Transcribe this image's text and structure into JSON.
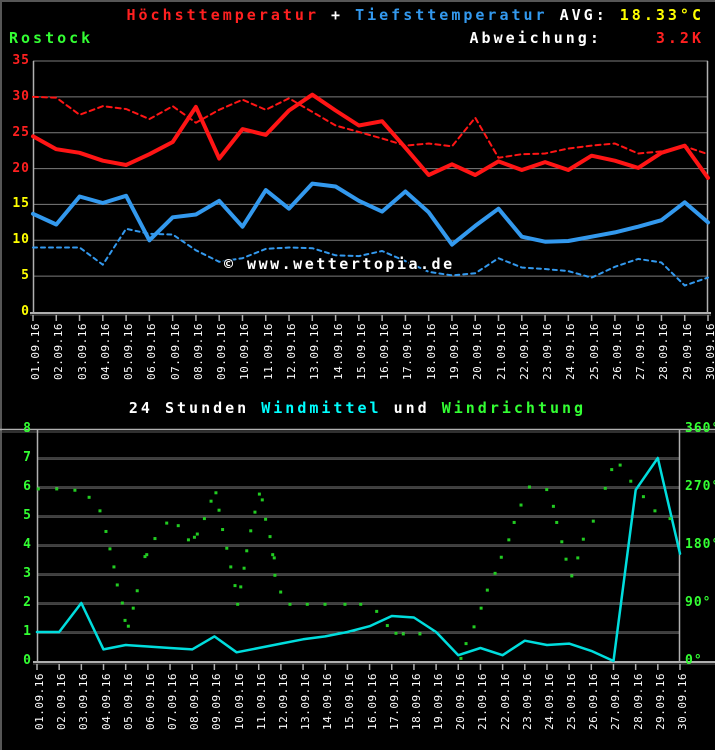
{
  "header": {
    "title_max": "Höchsttemperatur",
    "plus": " + ",
    "title_min": "Tiefsttemperatur",
    "avg_label": " AVG: ",
    "avg_value": "18.33°C",
    "station": "Rostock",
    "deviation_label": "Abweichung:",
    "deviation_value": "3.2K"
  },
  "watermark": {
    "text": "© www.wettertopia.de"
  },
  "wind_title": {
    "part1": "24 Stunden ",
    "part2": "Windmittel",
    "part3": " und ",
    "part4": "Windrichtung"
  },
  "colors": {
    "background": "#000000",
    "red": "#ff1515",
    "blue": "#3399ee",
    "yellow": "#ffff00",
    "green": "#33ff33",
    "cyan_line": "#00dddd",
    "white": "#ffffff",
    "grid": "#7d7d7d",
    "grid_shadow": "#454545",
    "axis": "#b0b0b0",
    "axis_shadow": "#5f5f5f",
    "dot_green": "#22cc22",
    "border": "#565656",
    "tick_red": "#ff2020",
    "tick_yellow": "#ffff00"
  },
  "chart_data": [
    {
      "type": "line",
      "title": "Höchsttemperatur + Tiefsttemperatur",
      "station": "Rostock",
      "avg": "18.33°C",
      "abweichung": "3.2K",
      "ylim": [
        0,
        35
      ],
      "yticks": [
        0,
        5,
        10,
        15,
        20,
        25,
        30,
        35
      ],
      "grid": true,
      "categories": [
        "01.09.16",
        "02.09.16",
        "03.09.16",
        "04.09.16",
        "05.09.16",
        "06.09.16",
        "07.09.16",
        "08.09.16",
        "09.09.16",
        "10.09.16",
        "11.09.16",
        "12.09.16",
        "13.09.16",
        "14.09.16",
        "15.09.16",
        "16.09.16",
        "17.09.16",
        "18.09.16",
        "19.09.16",
        "20.09.16",
        "21.09.16",
        "22.09.16",
        "23.09.16",
        "24.09.16",
        "25.09.16",
        "26.09.16",
        "27.09.16",
        "28.09.16",
        "29.09.16",
        "30.09.16"
      ],
      "series": [
        {
          "name": "hoechsttemperatur-vergleich",
          "style": "dashed",
          "color_key": "red",
          "values": [
            30.0,
            29.9,
            27.5,
            28.7,
            28.3,
            26.9,
            28.7,
            26.4,
            28.2,
            29.6,
            28.2,
            29.8,
            27.9,
            26.0,
            25.1,
            24.2,
            23.2,
            23.5,
            23.1,
            27.1,
            21.5,
            22.0,
            22.1,
            22.8,
            23.2,
            23.5,
            22.1,
            22.4,
            23.1,
            22.0
          ]
        },
        {
          "name": "tiefsttemperatur-vergleich",
          "style": "dashed",
          "color_key": "blue",
          "values": [
            9.0,
            9.0,
            9.0,
            6.6,
            11.6,
            10.9,
            10.8,
            8.6,
            7.0,
            7.5,
            8.8,
            9.0,
            8.9,
            7.9,
            7.8,
            8.5,
            7.1,
            5.6,
            5.1,
            5.4,
            7.5,
            6.2,
            6.0,
            5.7,
            4.8,
            6.3,
            7.4,
            6.9,
            3.7,
            4.8
          ]
        },
        {
          "name": "hoechsttemperatur",
          "style": "solid",
          "color_key": "red",
          "values": [
            24.5,
            22.7,
            22.2,
            21.1,
            20.5,
            22.0,
            23.7,
            28.6,
            21.4,
            25.5,
            24.7,
            28.1,
            30.3,
            28.1,
            26.0,
            26.6,
            22.9,
            19.1,
            20.6,
            19.1,
            21.0,
            19.8,
            20.9,
            19.8,
            21.8,
            21.1,
            20.1,
            22.2,
            23.2,
            18.7
          ]
        },
        {
          "name": "tiefsttemperatur",
          "style": "solid",
          "color_key": "blue",
          "values": [
            13.7,
            12.2,
            16.1,
            15.2,
            16.2,
            10.0,
            13.2,
            13.6,
            15.5,
            11.9,
            17.0,
            14.4,
            17.9,
            17.5,
            15.5,
            14.0,
            16.8,
            13.9,
            9.4,
            12.0,
            14.4,
            10.5,
            9.8,
            9.9,
            10.5,
            11.1,
            11.9,
            12.8,
            15.3,
            12.5
          ]
        }
      ]
    },
    {
      "type": "line+scatter",
      "title": "24 Stunden Windmittel und Windrichtung",
      "ylim_left": [
        0,
        8
      ],
      "yticks_left": [
        0,
        1,
        2,
        3,
        4,
        5,
        6,
        7,
        8
      ],
      "ylim_right": [
        0,
        360
      ],
      "yticks_right": [
        "0°",
        "90°",
        "180°",
        "270°",
        "360°"
      ],
      "grid": true,
      "categories": [
        "01.09.16",
        "02.09.16",
        "03.09.16",
        "04.09.16",
        "05.09.16",
        "06.09.16",
        "07.09.16",
        "08.09.16",
        "09.09.16",
        "10.09.16",
        "11.09.16",
        "12.09.16",
        "13.09.16",
        "14.09.16",
        "15.09.16",
        "16.09.16",
        "17.09.16",
        "18.09.16",
        "19.09.16",
        "20.09.16",
        "21.09.16",
        "22.09.16",
        "23.09.16",
        "24.09.16",
        "25.09.16",
        "26.09.16",
        "27.09.16",
        "28.09.16",
        "29.09.16",
        "30.09.16"
      ],
      "series": [
        {
          "name": "windmittel",
          "kind": "line",
          "color_key": "cyan_line",
          "values": [
            1.0,
            1.0,
            2.0,
            0.4,
            0.55,
            0.5,
            0.45,
            0.4,
            0.85,
            0.3,
            0.45,
            0.6,
            0.75,
            0.85,
            1.0,
            1.2,
            1.55,
            1.5,
            1.0,
            0.2,
            0.45,
            0.2,
            0.7,
            0.55,
            0.6,
            0.35,
            0.0,
            5.9,
            7.0,
            3.7
          ]
        },
        {
          "name": "windrichtung",
          "kind": "scatter",
          "color_key": "dot_green",
          "unit": "deg",
          "points": [
            [
              1.06,
              267
            ],
            [
              1.89,
              267
            ],
            [
              2.71,
              265
            ],
            [
              3.35,
              254
            ],
            [
              3.84,
              233
            ],
            [
              4.11,
              201
            ],
            [
              4.29,
              174
            ],
            [
              4.47,
              146
            ],
            [
              4.62,
              118
            ],
            [
              4.85,
              90
            ],
            [
              4.97,
              63
            ],
            [
              5.12,
              54
            ],
            [
              5.34,
              82
            ],
            [
              5.52,
              109
            ],
            [
              5.87,
              162
            ],
            [
              5.95,
              165
            ],
            [
              6.32,
              190
            ],
            [
              6.85,
              214
            ],
            [
              7.37,
              210
            ],
            [
              7.83,
              188
            ],
            [
              8.1,
              192
            ],
            [
              8.23,
              197
            ],
            [
              8.55,
              221
            ],
            [
              8.85,
              248
            ],
            [
              9.07,
              261
            ],
            [
              9.21,
              234
            ],
            [
              9.37,
              204
            ],
            [
              9.56,
              175
            ],
            [
              9.74,
              146
            ],
            [
              9.93,
              117
            ],
            [
              10.05,
              88
            ],
            [
              10.19,
              115
            ],
            [
              10.34,
              144
            ],
            [
              10.46,
              171
            ],
            [
              10.64,
              202
            ],
            [
              10.83,
              231
            ],
            [
              11.03,
              259
            ],
            [
              11.16,
              250
            ],
            [
              11.31,
              220
            ],
            [
              11.51,
              193
            ],
            [
              11.63,
              165
            ],
            [
              11.7,
              160
            ],
            [
              11.73,
              133
            ],
            [
              11.99,
              107
            ],
            [
              12.41,
              88
            ],
            [
              13.19,
              88
            ],
            [
              13.99,
              88
            ],
            [
              14.89,
              88
            ],
            [
              15.6,
              88
            ],
            [
              16.32,
              77
            ],
            [
              16.8,
              55
            ],
            [
              17.19,
              43
            ],
            [
              17.52,
              42
            ],
            [
              18.27,
              42
            ],
            [
              20.12,
              4
            ],
            [
              20.35,
              27
            ],
            [
              20.71,
              53
            ],
            [
              21.03,
              82
            ],
            [
              21.31,
              110
            ],
            [
              21.66,
              136
            ],
            [
              21.94,
              161
            ],
            [
              22.28,
              188
            ],
            [
              22.52,
              215
            ],
            [
              22.83,
              242
            ],
            [
              23.21,
              270
            ],
            [
              23.99,
              266
            ],
            [
              24.29,
              240
            ],
            [
              24.44,
              215
            ],
            [
              24.67,
              185
            ],
            [
              24.86,
              158
            ],
            [
              25.12,
              132
            ],
            [
              25.39,
              160
            ],
            [
              25.64,
              189
            ],
            [
              26.09,
              217
            ],
            [
              26.63,
              268
            ],
            [
              26.92,
              297
            ],
            [
              27.3,
              304
            ],
            [
              27.78,
              279
            ],
            [
              28.35,
              255
            ],
            [
              28.87,
              233
            ],
            [
              29.55,
              221
            ]
          ]
        }
      ]
    }
  ]
}
